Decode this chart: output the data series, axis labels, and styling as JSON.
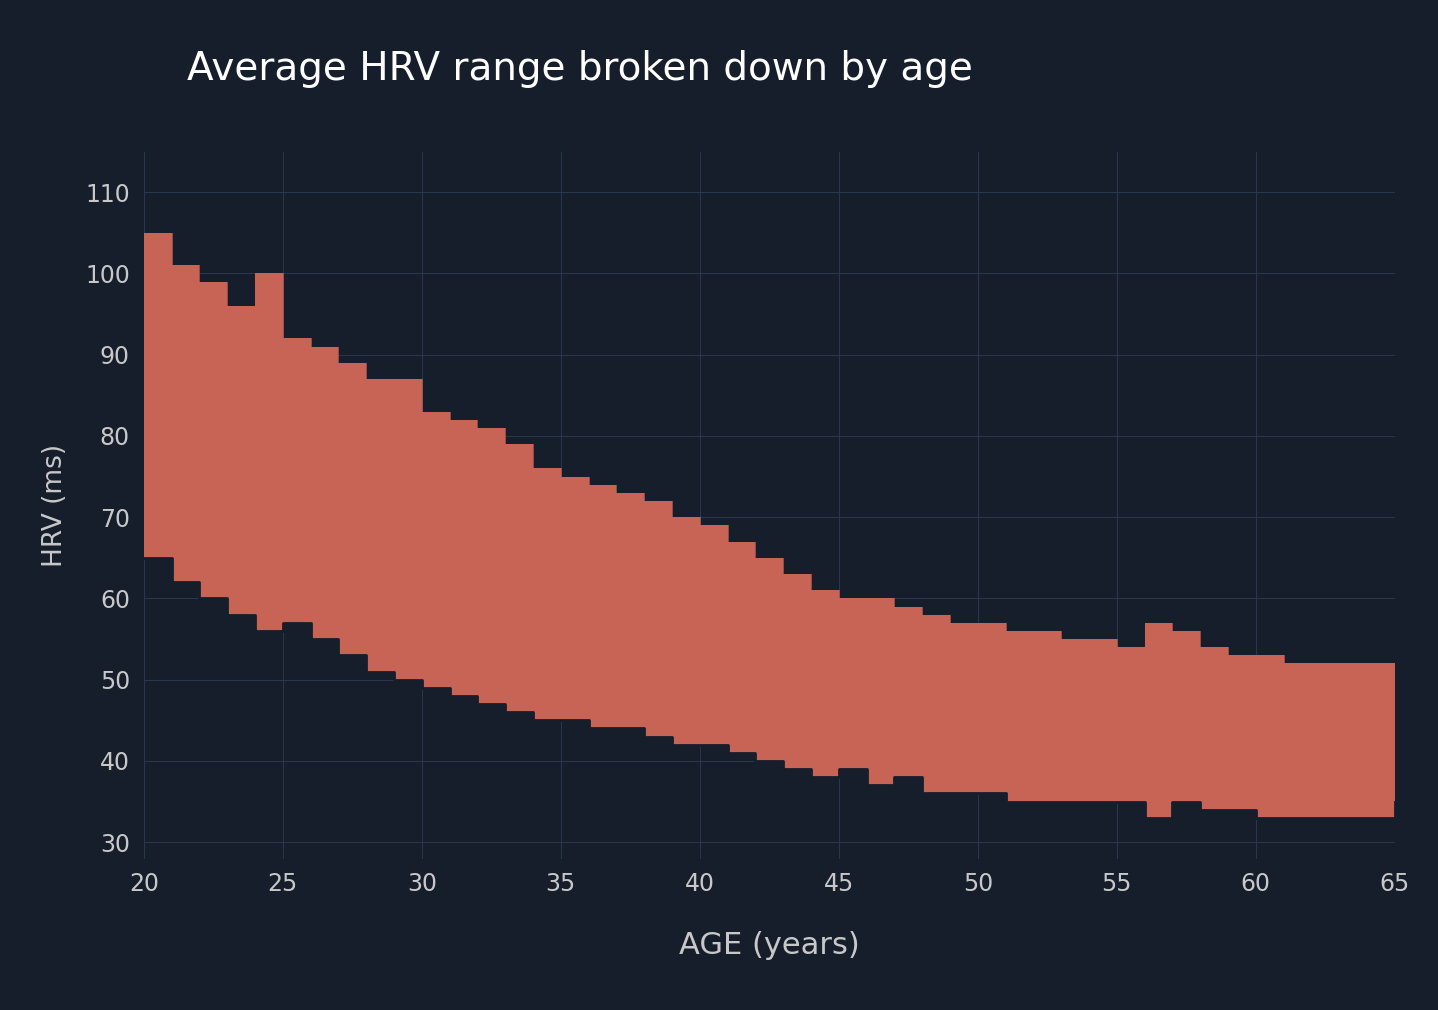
{
  "title": "Average HRV range broken down by age",
  "xlabel": "AGE (years)",
  "ylabel": "HRV (ms)",
  "background_color": "#161d2b",
  "fill_color": "#c86455",
  "grid_color": "#2a3850",
  "text_color": "#c8c8c8",
  "title_color": "#ffffff",
  "ages": [
    20,
    21,
    22,
    23,
    24,
    25,
    26,
    27,
    28,
    29,
    30,
    31,
    32,
    33,
    34,
    35,
    36,
    37,
    38,
    39,
    40,
    41,
    42,
    43,
    44,
    45,
    46,
    47,
    48,
    49,
    50,
    51,
    52,
    53,
    54,
    55,
    56,
    57,
    58,
    59,
    60,
    61,
    62,
    63,
    64,
    65
  ],
  "upper": [
    105,
    101,
    99,
    96,
    100,
    92,
    91,
    89,
    87,
    87,
    83,
    82,
    81,
    79,
    76,
    75,
    74,
    73,
    72,
    70,
    69,
    67,
    65,
    63,
    61,
    60,
    60,
    59,
    58,
    57,
    57,
    56,
    56,
    55,
    55,
    54,
    57,
    56,
    54,
    53,
    53,
    52,
    52,
    52,
    52,
    52
  ],
  "lower": [
    65,
    62,
    60,
    58,
    56,
    57,
    55,
    53,
    51,
    50,
    49,
    48,
    47,
    46,
    45,
    45,
    44,
    44,
    43,
    42,
    42,
    41,
    40,
    39,
    38,
    39,
    37,
    38,
    36,
    36,
    36,
    35,
    35,
    35,
    35,
    35,
    33,
    35,
    34,
    34,
    33,
    33,
    33,
    33,
    33,
    35
  ],
  "ylim": [
    28,
    115
  ],
  "xlim": [
    20,
    65
  ],
  "yticks": [
    30,
    40,
    50,
    60,
    70,
    80,
    90,
    100,
    110
  ],
  "xticks": [
    20,
    25,
    30,
    35,
    40,
    45,
    50,
    55,
    60,
    65
  ],
  "figsize": [
    14.38,
    10.1
  ],
  "dpi": 100
}
